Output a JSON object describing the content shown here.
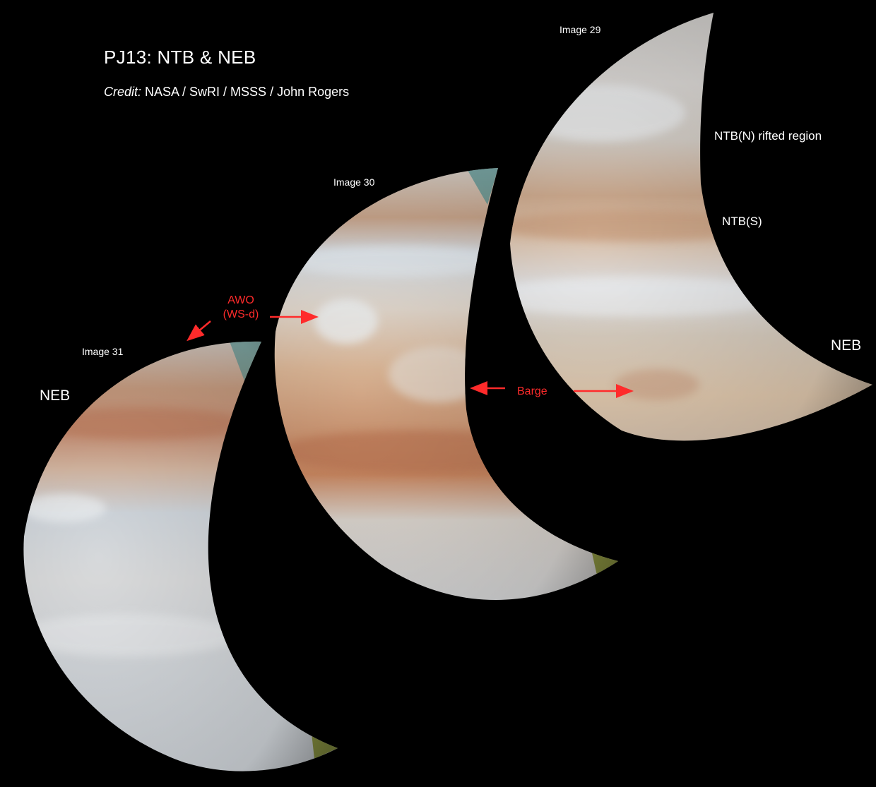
{
  "title": "PJ13:  NTB & NEB",
  "credit": {
    "prefix": "Credit:",
    "text": " NASA / SwRI / MSSS / John Rogers"
  },
  "images": [
    {
      "label": "Image 29"
    },
    {
      "label": "Image 30"
    },
    {
      "label": "Image 31"
    }
  ],
  "labels": {
    "ntb_n": "NTB(N) rifted region",
    "ntb_s": "NTB(S)",
    "neb_right": "NEB",
    "neb_left": "NEB"
  },
  "annotations": {
    "awo_line1": "AWO",
    "awo_line2": "(WS-d)",
    "barge": "Barge"
  },
  "colors": {
    "background": "#000000",
    "annotation": "#ff2b2b",
    "label_text": "#ffffff"
  }
}
